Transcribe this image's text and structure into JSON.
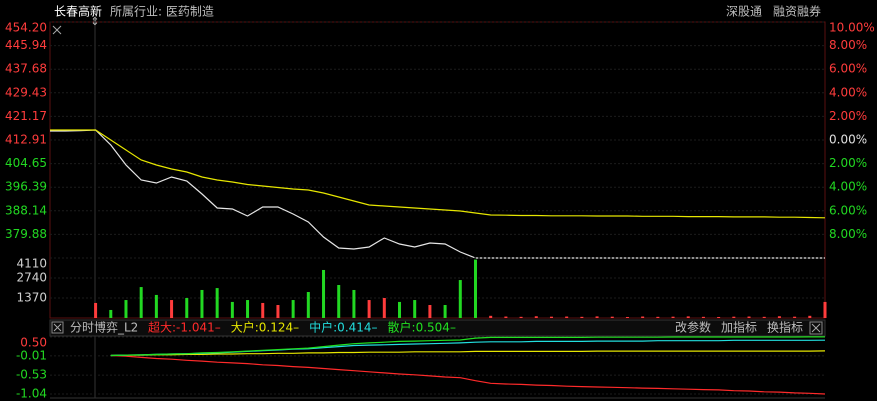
{
  "header": {
    "stock": "长春高新",
    "industry": "所属行业: 医药制造",
    "tags": [
      "深股通",
      "融资融券"
    ]
  },
  "chart_data": [
    {
      "type": "line",
      "xlim": [
        -15,
        240
      ],
      "x": [
        -15,
        -10,
        -5,
        0,
        5,
        10,
        15,
        20,
        25,
        30,
        35,
        40,
        45,
        50,
        55,
        60,
        65,
        70,
        75,
        80,
        85,
        90,
        95,
        100,
        105,
        110,
        115,
        120,
        125,
        130,
        135,
        140,
        145,
        150,
        155,
        160,
        165,
        170,
        175,
        180,
        185,
        190,
        195,
        200,
        205,
        210,
        215,
        220,
        225,
        230,
        235,
        240
      ],
      "ylim": [
        371.62,
        454.2
      ],
      "yticks": [
        {
          "value": 454.2,
          "label": "454.20"
        },
        {
          "value": 445.94,
          "label": "445.94"
        },
        {
          "value": 437.68,
          "label": "437.68"
        },
        {
          "value": 429.43,
          "label": "429.43"
        },
        {
          "value": 421.17,
          "label": "421.17"
        },
        {
          "value": 412.91,
          "label": "412.91"
        },
        {
          "value": 404.65,
          "label": "404.65"
        },
        {
          "value": 396.39,
          "label": "396.39"
        },
        {
          "value": 388.14,
          "label": "388.14"
        },
        {
          "value": 379.88,
          "label": "379.88"
        }
      ],
      "y2lim": [
        -10,
        10
      ],
      "y2ticks": [
        {
          "value": 10,
          "label": "10.00%"
        },
        {
          "value": 8,
          "label": "8.00%"
        },
        {
          "value": 6,
          "label": "6.00%"
        },
        {
          "value": 4,
          "label": "4.00%"
        },
        {
          "value": 2,
          "label": "2.00%"
        },
        {
          "value": 0,
          "label": "0.00%"
        },
        {
          "value": -2,
          "label": "2.00%"
        },
        {
          "value": -4,
          "label": "4.00%"
        },
        {
          "value": -6,
          "label": "6.00%"
        },
        {
          "value": -8,
          "label": "8.00%"
        }
      ],
      "up_color": "#ff3c3c",
      "down_color": "#22d822",
      "base_color": "#e0e0e0",
      "grid": true,
      "series": [
        {
          "color": "#e6e6e6",
          "values": [
            416.06,
            416.06,
            416.2,
            416.4,
            411.16,
            404.17,
            398.92,
            397.87,
            399.97,
            398.57,
            394.02,
            389.12,
            388.77,
            386.32,
            389.47,
            389.47,
            387.02,
            384.22,
            378.97,
            375.12,
            374.77,
            375.47,
            378.62,
            376.52,
            375.47,
            376.87,
            376.52,
            373.72,
            371.62,
            371.62,
            371.62,
            371.62,
            371.62,
            371.62,
            371.62,
            371.62,
            371.62,
            371.62,
            371.62,
            371.62,
            371.62,
            371.62,
            371.62,
            371.62,
            371.62,
            371.62,
            371.62,
            371.62,
            371.62,
            371.62,
            371.62,
            371.62
          ]
        },
        {
          "color": "#e6e600",
          "values": [
            416.4,
            416.4,
            416.4,
            416.4,
            412.91,
            409.41,
            405.91,
            404.17,
            402.77,
            401.72,
            399.97,
            398.92,
            398.22,
            397.34,
            396.82,
            396.29,
            395.77,
            395.42,
            394.37,
            392.97,
            391.57,
            390.17,
            389.82,
            389.47,
            389.12,
            388.77,
            388.42,
            388.07,
            387.37,
            386.67,
            386.6,
            386.5,
            386.5,
            386.4,
            386.4,
            386.4,
            386.3,
            386.3,
            386.3,
            386.2,
            386.2,
            386.2,
            386.1,
            386.1,
            386.1,
            386.0,
            386.0,
            386.0,
            385.9,
            385.9,
            385.8,
            385.7
          ]
        }
      ]
    },
    {
      "type": "bar",
      "xlim": [
        -15,
        240
      ],
      "x": [
        -15,
        -10,
        -5,
        0,
        5,
        10,
        15,
        20,
        25,
        30,
        35,
        40,
        45,
        50,
        55,
        60,
        65,
        70,
        75,
        80,
        85,
        90,
        95,
        100,
        105,
        110,
        115,
        120,
        125,
        130,
        135,
        140,
        145,
        150,
        155,
        160,
        165,
        170,
        175,
        180,
        185,
        190,
        195,
        200,
        205,
        210,
        215,
        220,
        225,
        230,
        235,
        240
      ],
      "ylim": [
        0,
        4110
      ],
      "yticks": [
        4110,
        2740,
        1370
      ],
      "up_color": "#ff3c3c",
      "down_color": "#22d822",
      "values": [
        0,
        0,
        0,
        1030,
        550,
        1230,
        2120,
        1580,
        1230,
        1370,
        1920,
        2050,
        1100,
        1230,
        1030,
        890,
        1230,
        1780,
        3290,
        2260,
        1920,
        1230,
        1370,
        1100,
        1230,
        890,
        890,
        2600,
        4000,
        150,
        100,
        80,
        120,
        90,
        100,
        80,
        110,
        90,
        70,
        100,
        80,
        90,
        110,
        80,
        70,
        90,
        100,
        80,
        120,
        90,
        150,
        1100
      ]
    },
    {
      "type": "line",
      "title": "分时博弈_L2",
      "buttons": [
        "改参数",
        "加指标",
        "换指标"
      ],
      "xlim": [
        -15,
        240
      ],
      "x": [
        -15,
        -10,
        -5,
        0,
        5,
        10,
        15,
        20,
        25,
        30,
        35,
        40,
        45,
        50,
        55,
        60,
        65,
        70,
        75,
        80,
        85,
        90,
        95,
        100,
        105,
        110,
        115,
        120,
        125,
        130,
        135,
        140,
        145,
        150,
        155,
        160,
        165,
        170,
        175,
        180,
        185,
        190,
        195,
        200,
        205,
        210,
        215,
        220,
        225,
        230,
        235,
        240
      ],
      "ylim": [
        -1.04,
        0.5
      ],
      "yticks": [
        {
          "value": 0.5,
          "label": "0.50"
        },
        -0.01,
        -0.53,
        -1.04
      ],
      "up_color": "#ff3c3c",
      "down_color": "#22d822",
      "series": [
        {
          "name": "超大:-1.041–",
          "color": "#ff2a2a",
          "values": [
            null,
            null,
            null,
            null,
            0,
            -0.02,
            -0.05,
            -0.08,
            -0.1,
            -0.13,
            -0.15,
            -0.18,
            -0.2,
            -0.22,
            -0.25,
            -0.27,
            -0.3,
            -0.32,
            -0.35,
            -0.38,
            -0.41,
            -0.44,
            -0.47,
            -0.5,
            -0.52,
            -0.55,
            -0.58,
            -0.6,
            -0.68,
            -0.75,
            -0.77,
            -0.78,
            -0.8,
            -0.81,
            -0.83,
            -0.84,
            -0.85,
            -0.86,
            -0.87,
            -0.88,
            -0.89,
            -0.9,
            -0.91,
            -0.92,
            -0.93,
            -0.95,
            -0.96,
            -0.98,
            -0.99,
            -1.01,
            -1.02,
            -1.041
          ]
        },
        {
          "name": "大户:0.124–",
          "color": "#e6e600",
          "values": [
            null,
            null,
            null,
            null,
            0,
            0.01,
            0.01,
            0.02,
            0.02,
            0.03,
            0.03,
            0.04,
            0.04,
            0.05,
            0.05,
            0.06,
            0.06,
            0.07,
            0.07,
            0.08,
            0.08,
            0.09,
            0.09,
            0.09,
            0.1,
            0.1,
            0.1,
            0.1,
            0.11,
            0.11,
            0.11,
            0.11,
            0.11,
            0.11,
            0.11,
            0.11,
            0.12,
            0.12,
            0.12,
            0.12,
            0.12,
            0.12,
            0.12,
            0.12,
            0.12,
            0.12,
            0.12,
            0.12,
            0.12,
            0.12,
            0.12,
            0.124
          ]
        },
        {
          "name": "中户:0.414–",
          "color": "#22dede",
          "values": [
            null,
            null,
            null,
            null,
            0,
            0.01,
            0.02,
            0.03,
            0.04,
            0.05,
            0.06,
            0.07,
            0.09,
            0.11,
            0.13,
            0.15,
            0.17,
            0.18,
            0.21,
            0.24,
            0.27,
            0.28,
            0.29,
            0.3,
            0.31,
            0.32,
            0.33,
            0.34,
            0.36,
            0.37,
            0.37,
            0.37,
            0.38,
            0.38,
            0.38,
            0.38,
            0.39,
            0.39,
            0.39,
            0.39,
            0.4,
            0.4,
            0.4,
            0.4,
            0.4,
            0.41,
            0.41,
            0.41,
            0.41,
            0.41,
            0.41,
            0.414
          ]
        },
        {
          "name": "散户:0.504–",
          "color": "#22e022",
          "values": [
            null,
            null,
            null,
            null,
            0,
            0.01,
            0.02,
            0.03,
            0.04,
            0.05,
            0.07,
            0.08,
            0.1,
            0.12,
            0.14,
            0.16,
            0.18,
            0.2,
            0.24,
            0.28,
            0.32,
            0.34,
            0.36,
            0.38,
            0.39,
            0.4,
            0.41,
            0.42,
            0.47,
            0.49,
            0.49,
            0.49,
            0.49,
            0.49,
            0.49,
            0.49,
            0.495,
            0.495,
            0.495,
            0.495,
            0.495,
            0.5,
            0.5,
            0.5,
            0.5,
            0.5,
            0.5,
            0.5,
            0.5,
            0.5,
            0.502,
            0.504
          ]
        }
      ]
    }
  ]
}
